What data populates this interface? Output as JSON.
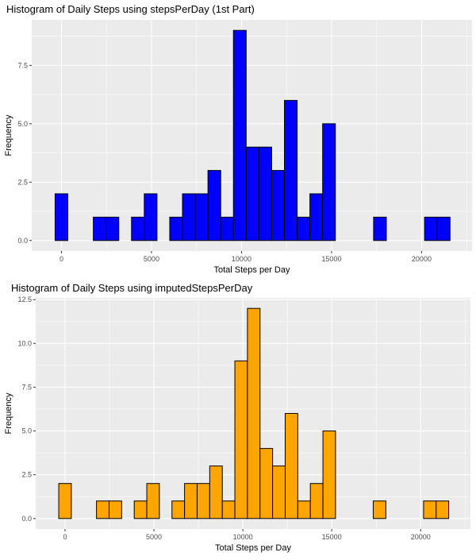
{
  "chart_data": [
    {
      "type": "bar",
      "title": "Histogram of Daily Steps using stepsPerDay (1st Part)",
      "xlabel": "Total Steps per Day",
      "ylabel": "Frequency",
      "bin_width": 707.5,
      "bin_centers": [
        0,
        707.5,
        1415,
        2122.5,
        2830,
        3537.5,
        4245,
        4952.5,
        5660,
        6367.5,
        7075,
        7782.5,
        8490,
        9197.5,
        9905,
        10612.5,
        11320,
        12027.5,
        12735,
        13442.5,
        14150,
        14857.5,
        15565,
        16272.5,
        16980,
        17687.5,
        18395,
        19102.5,
        19810,
        20517.5,
        21225
      ],
      "values": [
        2,
        0,
        0,
        1,
        1,
        0,
        1,
        2,
        0,
        1,
        2,
        2,
        3,
        1,
        9,
        4,
        4,
        3,
        6,
        1,
        2,
        5,
        0,
        0,
        0,
        1,
        0,
        0,
        0,
        1,
        1
      ],
      "xlim": [
        -1650,
        22800
      ],
      "ylim": [
        -0.45,
        9.45
      ],
      "xticks": [
        0,
        5000,
        10000,
        15000,
        20000
      ],
      "xtick_labels": [
        "0",
        "5000",
        "10000",
        "15000",
        "20000"
      ],
      "yticks": [
        0,
        2.5,
        5,
        7.5
      ],
      "ytick_labels": [
        "0.0",
        "2.5",
        "5.0",
        "7.5"
      ],
      "fill": "#0000ff",
      "outline": "#000000",
      "panel_bg": "#ebebeb",
      "grid": true
    },
    {
      "type": "bar",
      "title": "Histogram of Daily Steps using imputedStepsPerDay",
      "xlabel": "Total Steps per Day",
      "ylabel": "Frequency",
      "bin_width": 707.5,
      "bin_centers": [
        0,
        707.5,
        1415,
        2122.5,
        2830,
        3537.5,
        4245,
        4952.5,
        5660,
        6367.5,
        7075,
        7782.5,
        8490,
        9197.5,
        9905,
        10612.5,
        11320,
        12027.5,
        12735,
        13442.5,
        14150,
        14857.5,
        15565,
        16272.5,
        16980,
        17687.5,
        18395,
        19102.5,
        19810,
        20517.5,
        21225
      ],
      "values": [
        2,
        0,
        0,
        1,
        1,
        0,
        1,
        2,
        0,
        1,
        2,
        2,
        3,
        1,
        9,
        12,
        4,
        3,
        6,
        1,
        2,
        5,
        0,
        0,
        0,
        1,
        0,
        0,
        0,
        1,
        1
      ],
      "xlim": [
        -1650,
        22800
      ],
      "ylim": [
        -0.6,
        12.6
      ],
      "xticks": [
        0,
        5000,
        10000,
        15000,
        20000
      ],
      "xtick_labels": [
        "0",
        "5000",
        "10000",
        "15000",
        "20000"
      ],
      "yticks": [
        0,
        2.5,
        5,
        7.5,
        10,
        12.5
      ],
      "ytick_labels": [
        "0.0",
        "2.5",
        "5.0",
        "7.5",
        "10.0",
        "12.5"
      ],
      "fill": "#ffa500",
      "outline": "#000000",
      "panel_bg": "#ebebeb",
      "grid": true
    }
  ]
}
